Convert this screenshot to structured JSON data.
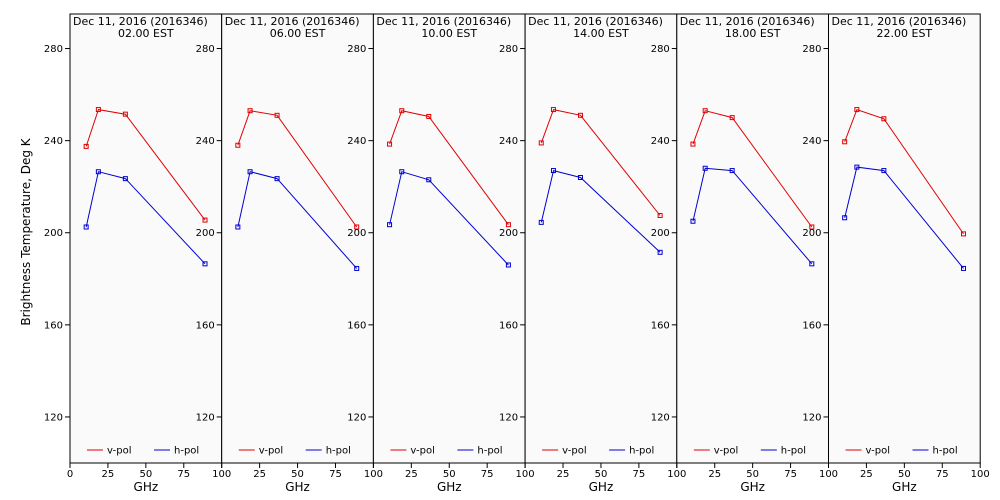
{
  "chart_data": {
    "type": "line",
    "ylabel": "Brightness Temperature, Deg K",
    "xlabel": "GHz",
    "ylim": [
      100,
      295
    ],
    "xlim": [
      0,
      100
    ],
    "y_ticks": [
      120,
      160,
      200,
      240,
      280
    ],
    "x_ticks": [
      0,
      25,
      50,
      75,
      100
    ],
    "x_tick_labels": [
      "0",
      "25",
      "50",
      "75",
      "100"
    ],
    "grid": false,
    "legend_placement": "bottom",
    "colors": {
      "v-pol": "#e00000",
      "h-pol": "#0000d0"
    },
    "panels": [
      {
        "date": "Dec 11, 2016 (2016346)",
        "time": "02.00 EST",
        "x": [
          10.65,
          18.7,
          36.5,
          89.0
        ],
        "series": [
          {
            "name": "v-pol",
            "values": [
              237.5,
              253.5,
              251.5,
              205.5
            ]
          },
          {
            "name": "h-pol",
            "values": [
              202.5,
              226.5,
              223.5,
              186.5
            ]
          }
        ]
      },
      {
        "date": "Dec 11, 2016 (2016346)",
        "time": "06.00 EST",
        "x": [
          10.65,
          18.7,
          36.5,
          89.0
        ],
        "series": [
          {
            "name": "v-pol",
            "values": [
              238.0,
              253.0,
              251.0,
              202.5
            ]
          },
          {
            "name": "h-pol",
            "values": [
              202.5,
              226.5,
              223.5,
              184.5
            ]
          }
        ]
      },
      {
        "date": "Dec 11, 2016 (2016346)",
        "time": "10.00 EST",
        "x": [
          10.65,
          18.7,
          36.5,
          89.0
        ],
        "series": [
          {
            "name": "v-pol",
            "values": [
              238.5,
              253.0,
              250.5,
              203.5
            ]
          },
          {
            "name": "h-pol",
            "values": [
              203.5,
              226.5,
              223.0,
              186.0
            ]
          }
        ]
      },
      {
        "date": "Dec 11, 2016 (2016346)",
        "time": "14.00 EST",
        "x": [
          10.65,
          18.7,
          36.5,
          89.0
        ],
        "series": [
          {
            "name": "v-pol",
            "values": [
              239.0,
              253.5,
              251.0,
              207.5
            ]
          },
          {
            "name": "h-pol",
            "values": [
              204.5,
              227.0,
              224.0,
              191.5
            ]
          }
        ]
      },
      {
        "date": "Dec 11, 2016 (2016346)",
        "time": "18.00 EST",
        "x": [
          10.65,
          18.7,
          36.5,
          89.0
        ],
        "series": [
          {
            "name": "v-pol",
            "values": [
              238.5,
              253.0,
              250.0,
              202.5
            ]
          },
          {
            "name": "h-pol",
            "values": [
              205.0,
              228.0,
              227.0,
              186.5
            ]
          }
        ]
      },
      {
        "date": "Dec 11, 2016 (2016346)",
        "time": "22.00 EST",
        "x": [
          10.65,
          18.7,
          36.5,
          89.0
        ],
        "series": [
          {
            "name": "v-pol",
            "values": [
              239.5,
              253.5,
              249.5,
              199.5
            ]
          },
          {
            "name": "h-pol",
            "values": [
              206.5,
              228.5,
              227.0,
              184.5
            ]
          }
        ]
      }
    ]
  }
}
